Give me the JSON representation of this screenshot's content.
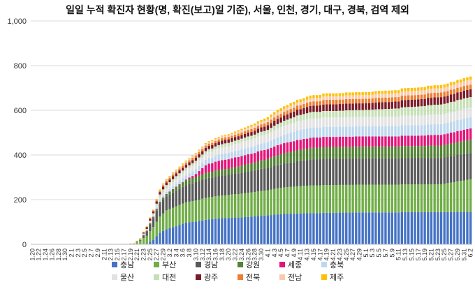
{
  "chart_data": {
    "type": "bar",
    "stacked": true,
    "title": "일일 누적 확진자 현황(명, 확진(보고)일 기준), 서울, 인천, 경기,  대구, 경북, 검역 제외",
    "ylim": [
      0,
      1000
    ],
    "yticks": [
      "0",
      "200",
      "400",
      "600",
      "800",
      "1,000"
    ],
    "grid": true,
    "legend_position": "bottom",
    "start_date": "2020-01-20",
    "end_date": "2020-06-02",
    "xtick_labels": [
      "1.20",
      "1.22",
      "1.24",
      "1.26",
      "1.28",
      "1.30",
      "2.1",
      "2.3",
      "2.5",
      "2.7",
      "2.9",
      "2.11",
      "2.13",
      "2.15",
      "2.17",
      "2.19",
      "2.21",
      "2.23",
      "2.25",
      "2.27",
      "2.29",
      "3.2",
      "3.4",
      "3.6",
      "3.8",
      "3.10",
      "3.12",
      "3.14",
      "3.16",
      "3.18",
      "3.20",
      "3.22",
      "3.24",
      "3.26",
      "3.28",
      "3.30",
      "4.1",
      "4.3",
      "4.5",
      "4.7",
      "4.9",
      "4.11",
      "4.13",
      "4.15",
      "4.17",
      "4.19",
      "4.21",
      "4.23",
      "4.25",
      "4.27",
      "4.29",
      "5.1",
      "5.3",
      "5.5",
      "5.7",
      "5.9",
      "5.11",
      "5.13",
      "5.15",
      "5.17",
      "5.19",
      "5.21",
      "5.23",
      "5.25",
      "5.27",
      "5.29",
      "5.31",
      "6.2"
    ],
    "keyframes": [
      {
        "date": "2020-01-20",
        "values": [
          0,
          0,
          0,
          0,
          0,
          0,
          0,
          0,
          0,
          0,
          0,
          0
        ]
      },
      {
        "date": "2020-02-04",
        "values": [
          0,
          0,
          0,
          0,
          0,
          0,
          0,
          0,
          0,
          0,
          0,
          0
        ]
      },
      {
        "date": "2020-02-05",
        "values": [
          0,
          0,
          0,
          0,
          0,
          0,
          0,
          1,
          1,
          0,
          1,
          0
        ]
      },
      {
        "date": "2020-02-18",
        "values": [
          0,
          0,
          0,
          0,
          0,
          0,
          0,
          1,
          1,
          0,
          1,
          0
        ]
      },
      {
        "date": "2020-02-20",
        "values": [
          0,
          2,
          0,
          0,
          0,
          0,
          0,
          1,
          1,
          0,
          1,
          0
        ]
      },
      {
        "date": "2020-02-22",
        "values": [
          0,
          16,
          4,
          0,
          0,
          0,
          0,
          3,
          1,
          0,
          1,
          2
        ]
      },
      {
        "date": "2020-02-24",
        "values": [
          3,
          35,
          20,
          2,
          1,
          2,
          2,
          4,
          8,
          1,
          1,
          2
        ]
      },
      {
        "date": "2020-02-26",
        "values": [
          20,
          58,
          40,
          5,
          1,
          3,
          6,
          6,
          8,
          5,
          2,
          2
        ]
      },
      {
        "date": "2020-02-28",
        "values": [
          52,
          72,
          59,
          7,
          1,
          9,
          11,
          12,
          11,
          5,
          3,
          4
        ]
      },
      {
        "date": "2020-03-01",
        "values": [
          68,
          84,
          62,
          10,
          1,
          10,
          17,
          13,
          12,
          8,
          4,
          4
        ]
      },
      {
        "date": "2020-03-04",
        "values": [
          81,
          89,
          71,
          16,
          1,
          14,
          20,
          13,
          13,
          8,
          5,
          4
        ]
      },
      {
        "date": "2020-03-07",
        "values": [
          97,
          91,
          77,
          22,
          3,
          18,
          22,
          13,
          13,
          9,
          6,
          4
        ]
      },
      {
        "date": "2020-03-10",
        "values": [
          102,
          94,
          83,
          24,
          12,
          22,
          24,
          13,
          14,
          10,
          7,
          4
        ]
      },
      {
        "date": "2020-03-13",
        "values": [
          110,
          98,
          86,
          25,
          35,
          24,
          26,
          13,
          15,
          10,
          7,
          4
        ]
      },
      {
        "date": "2020-03-16",
        "values": [
          115,
          100,
          88,
          27,
          40,
          26,
          28,
          14,
          15,
          10,
          8,
          4
        ]
      },
      {
        "date": "2020-03-20",
        "values": [
          118,
          103,
          90,
          28,
          42,
          28,
          30,
          15,
          16,
          11,
          8,
          4
        ]
      },
      {
        "date": "2020-03-25",
        "values": [
          122,
          107,
          95,
          32,
          43,
          30,
          33,
          16,
          16,
          12,
          10,
          7
        ]
      },
      {
        "date": "2020-04-01",
        "values": [
          130,
          112,
          100,
          40,
          44,
          31,
          37,
          18,
          21,
          14,
          12,
          10
        ]
      },
      {
        "date": "2020-04-05",
        "values": [
          135,
          118,
          104,
          46,
          45,
          36,
          40,
          21,
          23,
          16,
          13,
          12
        ]
      },
      {
        "date": "2020-04-10",
        "values": [
          138,
          122,
          112,
          50,
          45,
          44,
          40,
          26,
          26,
          18,
          14,
          12
        ]
      },
      {
        "date": "2020-04-15",
        "values": [
          140,
          124,
          117,
          52,
          45,
          45,
          41,
          29,
          28,
          19,
          15,
          13
        ]
      },
      {
        "date": "2020-04-20",
        "values": [
          141,
          124,
          118,
          53,
          45,
          45,
          42,
          29,
          30,
          20,
          16,
          13
        ]
      },
      {
        "date": "2020-04-30",
        "values": [
          143,
          124,
          118,
          53,
          45,
          45,
          43,
          30,
          30,
          20,
          17,
          13
        ]
      },
      {
        "date": "2020-05-08",
        "values": [
          143,
          124,
          118,
          53,
          45,
          46,
          43,
          34,
          31,
          20,
          18,
          13
        ]
      },
      {
        "date": "2020-05-16",
        "values": [
          144,
          124,
          118,
          54,
          46,
          47,
          43,
          40,
          32,
          20,
          19,
          14
        ]
      },
      {
        "date": "2020-05-24",
        "values": [
          144,
          125,
          118,
          55,
          48,
          48,
          43,
          45,
          33,
          21,
          19,
          14
        ]
      },
      {
        "date": "2020-06-02",
        "values": [
          145,
          146,
          118,
          60,
          50,
          50,
          44,
          46,
          35,
          21,
          22,
          14
        ]
      }
    ],
    "series": [
      {
        "name": "충남",
        "color": "#4472c4"
      },
      {
        "name": "부산",
        "color": "#70ad47"
      },
      {
        "name": "경남",
        "color": "#595959"
      },
      {
        "name": "강원",
        "color": "#548235"
      },
      {
        "name": "세종",
        "color": "#e3157a"
      },
      {
        "name": "충북",
        "color": "#bdd7ee"
      },
      {
        "name": "울산",
        "color": "#e2e2e2"
      },
      {
        "name": "대전",
        "color": "#c5e0b4"
      },
      {
        "name": "광주",
        "color": "#7b1a28"
      },
      {
        "name": "전북",
        "color": "#ed7d31"
      },
      {
        "name": "전남",
        "color": "#f8cbad"
      },
      {
        "name": "제주",
        "color": "#ffc000"
      }
    ]
  }
}
